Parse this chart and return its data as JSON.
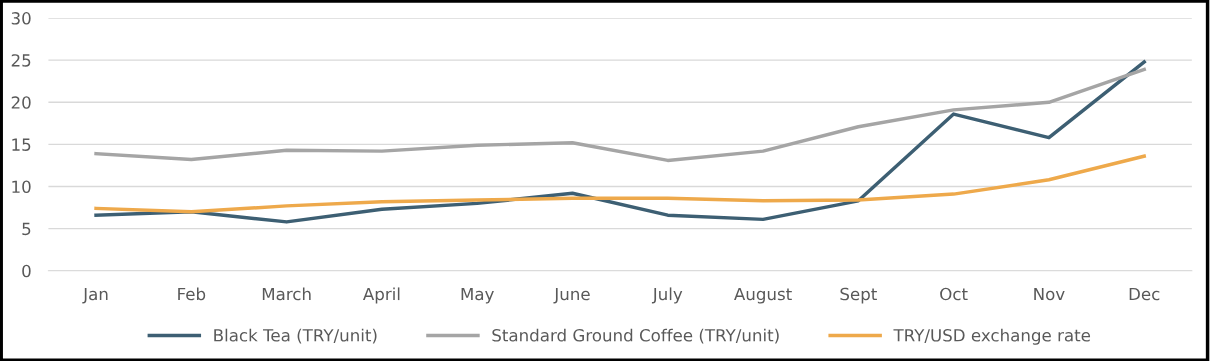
{
  "chart_data": {
    "type": "line",
    "categories": [
      "Jan",
      "Feb",
      "March",
      "April",
      "May",
      "June",
      "July",
      "August",
      "Sept",
      "Oct",
      "Nov",
      "Dec"
    ],
    "series": [
      {
        "name": "Black Tea (TRY/unit)",
        "color": "#3d5f73",
        "values": [
          6.6,
          7.0,
          5.8,
          7.3,
          8.0,
          9.2,
          6.6,
          6.1,
          8.3,
          18.6,
          15.8,
          24.8
        ]
      },
      {
        "name": "Standard Ground Coffee (TRY/unit)",
        "color": "#a5a5a5",
        "values": [
          13.9,
          13.2,
          14.3,
          14.2,
          14.9,
          15.2,
          13.1,
          14.2,
          17.1,
          19.1,
          20.0,
          23.9
        ]
      },
      {
        "name": "TRY/USD exchange rate",
        "color": "#eea94b",
        "values": [
          7.4,
          7.0,
          7.7,
          8.2,
          8.4,
          8.6,
          8.6,
          8.3,
          8.4,
          9.1,
          10.8,
          13.6
        ]
      }
    ],
    "ylim": [
      0,
      30
    ],
    "yticks": [
      0,
      5,
      10,
      15,
      20,
      25,
      30
    ],
    "grid": "y",
    "legend": "bottom",
    "marker": "none",
    "line_style": "solid"
  }
}
